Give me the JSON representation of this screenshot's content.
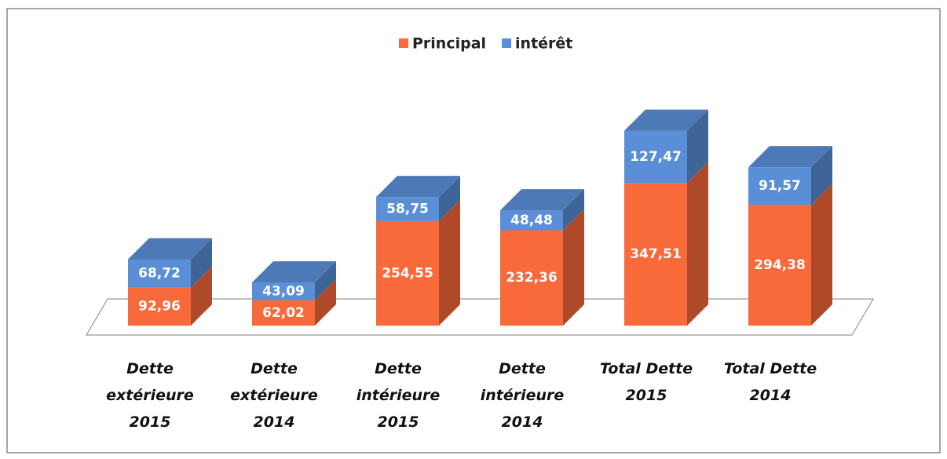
{
  "chart_data": {
    "type": "bar3d-stacked",
    "categories": [
      "Dette\nextérieure\n2015",
      "Dette\nextérieure\n2014",
      "Dette\nintérieure\n2015",
      "Dette\nintérieure\n2014",
      "Total Dette\n2015",
      "Total Dette\n2014"
    ],
    "series": [
      {
        "name": "Principal",
        "color": "#f96a3a",
        "values": [
          92.96,
          62.02,
          254.55,
          232.36,
          347.51,
          294.38
        ],
        "value_labels": [
          "92,96",
          "62,02",
          "254,55",
          "232,36",
          "347,51",
          "294,38"
        ]
      },
      {
        "name": "intérêt",
        "color": "#5a8fd7",
        "values": [
          68.72,
          43.09,
          58.75,
          48.48,
          127.47,
          91.57
        ],
        "value_labels": [
          "68,72",
          "43,09",
          "58,75",
          "48,48",
          "127,47",
          "91,57"
        ]
      }
    ]
  }
}
